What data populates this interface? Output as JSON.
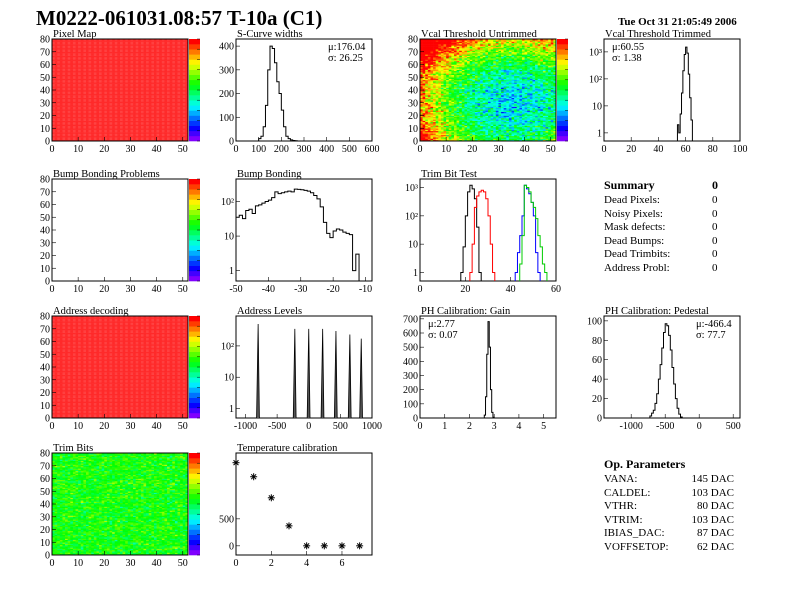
{
  "header": {
    "title": "M0222-061031.08:57 T-10a (C1)",
    "date": "Tue Oct 31 21:05:49 2006"
  },
  "colors": {
    "frame": "#000000",
    "hist": "#000000",
    "trim_series": [
      "#000000",
      "#ff0000",
      "#0000ff",
      "#00cc00"
    ]
  },
  "chart_data": [
    {
      "id": "pixel_map",
      "type": "heatmap",
      "title": "Pixel Map",
      "xlim": [
        0,
        52
      ],
      "ylim": [
        0,
        80
      ],
      "xticks": [
        0,
        10,
        20,
        30,
        40,
        50
      ],
      "yticks": [
        0,
        10,
        20,
        30,
        40,
        50,
        60,
        70,
        80
      ],
      "zlim": [
        0,
        10
      ],
      "fill": "uniform",
      "value": 10
    },
    {
      "id": "scurve_widths",
      "type": "bar",
      "title": "S-Curve widths",
      "xlim": [
        0,
        600
      ],
      "ylim": [
        0,
        430
      ],
      "xticks": [
        0,
        100,
        200,
        300,
        400,
        500,
        600
      ],
      "yticks": [
        0,
        100,
        200,
        300,
        400
      ],
      "bin_start": 100,
      "bin_width": 10,
      "values": [
        10,
        20,
        60,
        150,
        300,
        400,
        390,
        330,
        250,
        200,
        130,
        60,
        20,
        10,
        5,
        2,
        1
      ],
      "stats": {
        "mean": "μ:176.04",
        "sigma": "σ: 26.25"
      }
    },
    {
      "id": "vcal_untrimmed",
      "type": "heatmap",
      "title": "Vcal Threshold Untrimmed",
      "xlim": [
        0,
        52
      ],
      "ylim": [
        0,
        80
      ],
      "xticks": [
        0,
        10,
        20,
        30,
        40,
        50
      ],
      "yticks": [
        0,
        10,
        20,
        30,
        40,
        50,
        60,
        70,
        80
      ],
      "zlim": [
        85,
        125
      ],
      "fill": "noise",
      "mean": 105,
      "spread": 6
    },
    {
      "id": "vcal_trimmed",
      "type": "bar",
      "title": "Vcal Threshold Trimmed",
      "log": true,
      "xlim": [
        0,
        100
      ],
      "ylim": [
        0.5,
        3000
      ],
      "xticks": [
        0,
        20,
        40,
        60,
        80,
        100
      ],
      "yticks": [
        1,
        10,
        100,
        1000
      ],
      "yticklabels": [
        "1",
        "10",
        "10²",
        "10³"
      ],
      "bin_start": 54,
      "bin_width": 1,
      "values": [
        2,
        1,
        5,
        30,
        200,
        800,
        1500,
        900,
        150,
        20,
        3
      ],
      "stats": {
        "mean": "μ:60.55",
        "sigma": "σ: 1.38"
      }
    },
    {
      "id": "bump_problems",
      "type": "heatmap",
      "title": "Bump Bonding Problems",
      "xlim": [
        0,
        52
      ],
      "ylim": [
        0,
        80
      ],
      "xticks": [
        0,
        10,
        20,
        30,
        40,
        50
      ],
      "yticks": [
        0,
        10,
        20,
        30,
        40,
        50,
        60,
        70,
        80
      ],
      "zlim": [
        0,
        1
      ],
      "fill": "empty"
    },
    {
      "id": "bump_bonding",
      "type": "bar",
      "title": "Bump Bonding",
      "log": true,
      "xlim": [
        -50,
        -8
      ],
      "ylim": [
        0.5,
        450
      ],
      "xticks": [
        -50,
        -40,
        -30,
        -20,
        -10
      ],
      "yticks": [
        1,
        10,
        100
      ],
      "yticklabels": [
        "1",
        "10",
        "10²"
      ],
      "bin_start": -50,
      "bin_width": 1,
      "values": [
        35,
        40,
        32,
        55,
        60,
        45,
        75,
        80,
        90,
        100,
        110,
        130,
        190,
        170,
        180,
        190,
        200,
        190,
        230,
        225,
        220,
        210,
        200,
        180,
        150,
        120,
        70,
        25,
        12,
        9,
        14,
        16,
        15,
        13,
        12,
        11,
        1,
        3,
        0
      ]
    },
    {
      "id": "trim_bit_test",
      "type": "bar",
      "title": "Trim Bit Test",
      "log": true,
      "xlim": [
        0,
        60
      ],
      "ylim": [
        0.5,
        2000
      ],
      "xticks": [
        0,
        20,
        40,
        60
      ],
      "yticks": [
        1,
        10,
        100,
        1000
      ],
      "yticklabels": [
        "1",
        "10",
        "10²",
        "10³"
      ],
      "bin_width": 1,
      "series": [
        {
          "bin_start": 18,
          "values": [
            1,
            8,
            100,
            700,
            1200,
            900,
            400,
            40,
            1
          ]
        },
        {
          "bin_start": 22,
          "values": [
            1,
            10,
            200,
            500,
            700,
            800,
            700,
            400,
            100,
            10,
            1
          ]
        },
        {
          "bin_start": 42,
          "values": [
            1,
            5,
            20,
            100,
            1200,
            900,
            600,
            300,
            100,
            5,
            1
          ]
        },
        {
          "bin_start": 44,
          "values": [
            2,
            20,
            1200,
            1000,
            700,
            300,
            200,
            80,
            20,
            8,
            2,
            1
          ]
        }
      ]
    },
    {
      "id": "summary",
      "title": "Summary",
      "total": "0",
      "items": [
        {
          "label": "Dead Pixels:",
          "value": "0"
        },
        {
          "label": "Noisy Pixels:",
          "value": "0"
        },
        {
          "label": "Mask defects:",
          "value": "0"
        },
        {
          "label": "Dead Bumps:",
          "value": "0"
        },
        {
          "label": "Dead Trimbits:",
          "value": "0"
        },
        {
          "label": "Address Probl:",
          "value": "0"
        }
      ]
    },
    {
      "id": "address_decoding",
      "type": "heatmap",
      "title": "Address decoding",
      "xlim": [
        0,
        52
      ],
      "ylim": [
        0,
        80
      ],
      "xticks": [
        0,
        10,
        20,
        30,
        40,
        50
      ],
      "yticks": [
        0,
        10,
        20,
        30,
        40,
        50,
        60,
        70,
        80
      ],
      "zlim": [
        0,
        1
      ],
      "fill": "uniform",
      "value": 1
    },
    {
      "id": "address_levels",
      "type": "spikes",
      "title": "Address Levels",
      "log": true,
      "xlim": [
        -1150,
        1000
      ],
      "ylim": [
        0.5,
        900
      ],
      "xticks": [
        -1000,
        -500,
        0,
        500,
        1000
      ],
      "yticks": [
        1,
        10,
        100
      ],
      "yticklabels": [
        "1",
        "10",
        "10²"
      ],
      "peaks": [
        [
          -800,
          500
        ],
        [
          -220,
          350
        ],
        [
          0,
          350
        ],
        [
          220,
          350
        ],
        [
          430,
          300
        ],
        [
          650,
          230
        ],
        [
          830,
          170
        ]
      ]
    },
    {
      "id": "ph_gain",
      "type": "bar",
      "title": "PH Calibration: Gain",
      "xlim": [
        0,
        5.5
      ],
      "ylim": [
        0,
        720
      ],
      "xticks": [
        0,
        1,
        2,
        3,
        4,
        5
      ],
      "yticks": [
        0,
        100,
        200,
        300,
        400,
        500,
        600,
        700
      ],
      "bin_start": 2.6,
      "bin_width": 0.05,
      "values": [
        20,
        150,
        450,
        680,
        500,
        200,
        40,
        5
      ],
      "stats": {
        "mean": "μ:2.77",
        "sigma": "σ: 0.07"
      }
    },
    {
      "id": "ph_pedestal",
      "type": "bar",
      "title": "PH Calibration: Pedestal",
      "xlim": [
        -1400,
        600
      ],
      "ylim": [
        0,
        105
      ],
      "xticks": [
        -1000,
        -500,
        0,
        500
      ],
      "yticks": [
        0,
        20,
        40,
        60,
        80,
        100
      ],
      "bin_start": -725,
      "bin_width": 25,
      "values": [
        2,
        5,
        8,
        15,
        25,
        40,
        55,
        72,
        88,
        97,
        95,
        85,
        70,
        52,
        35,
        20,
        10,
        4,
        1
      ],
      "stats": {
        "mean": "μ:-466.4",
        "sigma": "σ: 77.7"
      }
    },
    {
      "id": "trim_bits",
      "type": "heatmap",
      "title": "Trim Bits",
      "xlim": [
        0,
        52
      ],
      "ylim": [
        0,
        80
      ],
      "xticks": [
        0,
        10,
        20,
        30,
        40,
        50
      ],
      "yticks": [
        0,
        10,
        20,
        30,
        40,
        50,
        60,
        70,
        80
      ],
      "zlim": [
        0,
        16
      ],
      "fill": "noise",
      "mean": 9,
      "spread": 1.5
    },
    {
      "id": "temperature_calibration",
      "type": "scatter",
      "title": "Temperature calibration",
      "xlim": [
        0,
        7.7
      ],
      "ylim": [
        -170,
        1720
      ],
      "xticks": [
        0,
        2,
        4,
        6
      ],
      "yticks": [
        0,
        500
      ],
      "x": [
        0,
        1,
        2,
        3,
        4,
        5,
        6,
        7
      ],
      "y": [
        1540,
        1280,
        890,
        370,
        0,
        0,
        0,
        0
      ],
      "marker": "asterisk"
    },
    {
      "id": "op_parameters",
      "title": "Op. Parameters",
      "items": [
        {
          "label": "VANA:",
          "value": "145 DAC"
        },
        {
          "label": "CALDEL:",
          "value": "103 DAC"
        },
        {
          "label": "VTHR:",
          "value": "80 DAC"
        },
        {
          "label": "VTRIM:",
          "value": "103 DAC"
        },
        {
          "label": "IBIAS_DAC:",
          "value": "87 DAC"
        },
        {
          "label": "VOFFSETOP:",
          "value": "62 DAC"
        }
      ]
    }
  ]
}
